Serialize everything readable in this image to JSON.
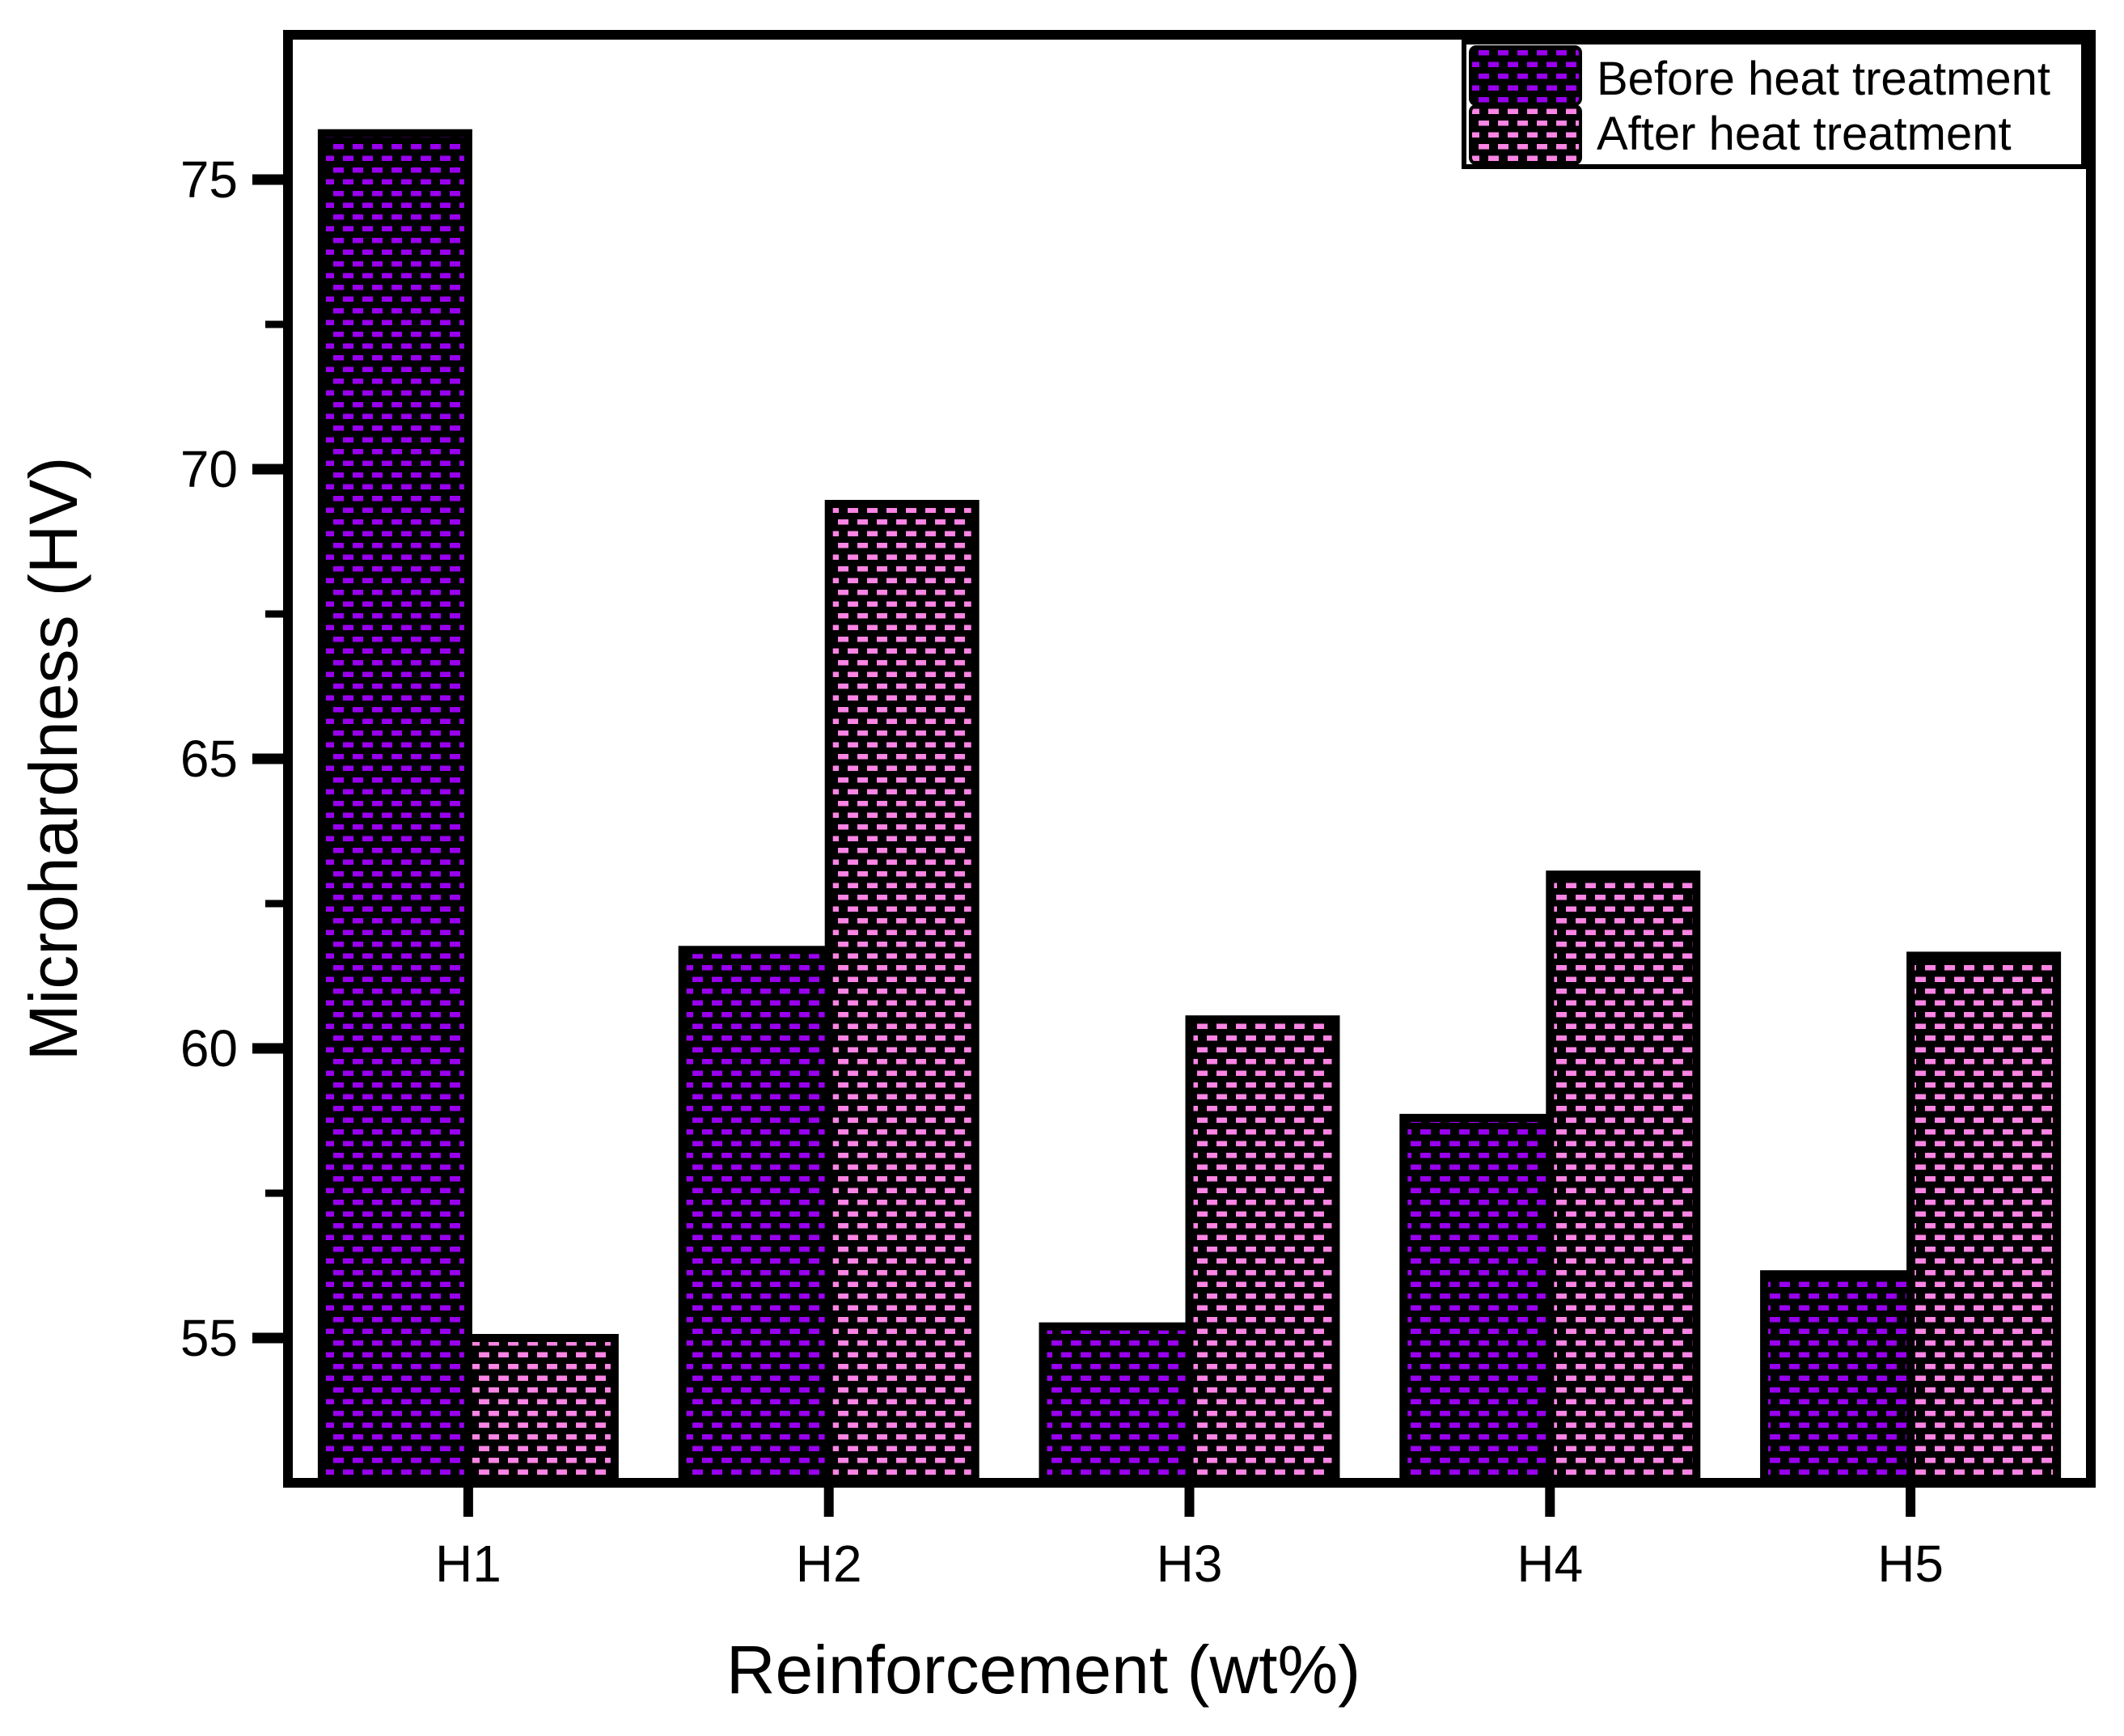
{
  "chart_data": {
    "type": "bar",
    "title": "",
    "xlabel": "Reinforcement (wt%)",
    "ylabel": "Microhardness (HV)",
    "categories": [
      "H1",
      "H2",
      "H3",
      "H4",
      "H5"
    ],
    "series": [
      {
        "name": "Before heat treatment",
        "values": [
          75.8,
          61.7,
          55.2,
          58.8,
          56.1
        ],
        "dash_color": "#9900EE",
        "background_color": "#000000"
      },
      {
        "name": "After heat treatment",
        "values": [
          55.0,
          69.4,
          60.5,
          63.0,
          61.6
        ],
        "dash_color": "#FB84E4",
        "background_color": "#000000"
      }
    ],
    "ylim": [
      52.5,
      77.5
    ],
    "yticks": [
      55,
      60,
      65,
      70,
      75
    ],
    "ytick_labels": [
      "55",
      "60",
      "65",
      "70",
      "75"
    ],
    "minor_yticks": [
      57.5,
      62.5,
      67.5,
      72.5
    ],
    "grid": false,
    "legend_position": "top-right",
    "frame_color": "#000000",
    "background": "#ffffff"
  }
}
